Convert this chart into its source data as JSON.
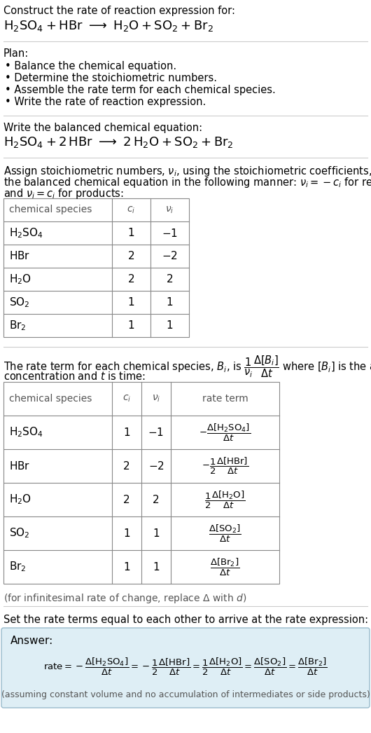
{
  "bg_color": "#ffffff",
  "text_color": "#000000",
  "gray_text": "#555555",
  "table_border": "#888888",
  "answer_bg": "#deeef5",
  "answer_border": "#99bbcc",
  "title_line1": "Construct the rate of reaction expression for:",
  "plan_header": "Plan:",
  "plan_items": [
    "• Balance the chemical equation.",
    "• Determine the stoichiometric numbers.",
    "• Assemble the rate term for each chemical species.",
    "• Write the rate of reaction expression."
  ],
  "balanced_header": "Write the balanced chemical equation:",
  "stoich_intro1": "Assign stoichiometric numbers, $\\nu_i$, using the stoichiometric coefficients, $c_i$, from",
  "stoich_intro2": "the balanced chemical equation in the following manner: $\\nu_i = -c_i$ for reactants",
  "stoich_intro3": "and $\\nu_i = c_i$ for products:",
  "table1_headers": [
    "chemical species",
    "$c_i$",
    "$\\nu_i$"
  ],
  "table1_rows": [
    [
      "$\\mathrm{H_2SO_4}$",
      "1",
      "$-1$"
    ],
    [
      "$\\mathrm{HBr}$",
      "2",
      "$-2$"
    ],
    [
      "$\\mathrm{H_2O}$",
      "2",
      "2"
    ],
    [
      "$\\mathrm{SO_2}$",
      "1",
      "1"
    ],
    [
      "$\\mathrm{Br_2}$",
      "1",
      "1"
    ]
  ],
  "rate_intro2": "concentration and $t$ is time:",
  "table2_headers": [
    "chemical species",
    "$c_i$",
    "$\\nu_i$",
    "rate term"
  ],
  "table2_rows": [
    [
      "$\\mathrm{H_2SO_4}$",
      "1",
      "$-1$",
      "$-\\dfrac{\\Delta[\\mathrm{H_2SO_4}]}{\\Delta t}$"
    ],
    [
      "$\\mathrm{HBr}$",
      "2",
      "$-2$",
      "$-\\dfrac{1}{2}\\dfrac{\\Delta[\\mathrm{HBr}]}{\\Delta t}$"
    ],
    [
      "$\\mathrm{H_2O}$",
      "2",
      "2",
      "$\\dfrac{1}{2}\\dfrac{\\Delta[\\mathrm{H_2O}]}{\\Delta t}$"
    ],
    [
      "$\\mathrm{SO_2}$",
      "1",
      "1",
      "$\\dfrac{\\Delta[\\mathrm{SO_2}]}{\\Delta t}$"
    ],
    [
      "$\\mathrm{Br_2}$",
      "1",
      "1",
      "$\\dfrac{\\Delta[\\mathrm{Br_2}]}{\\Delta t}$"
    ]
  ],
  "infinitesimal_note": "(for infinitesimal rate of change, replace $\\Delta$ with $d$)",
  "set_equal_text": "Set the rate terms equal to each other to arrive at the rate expression:",
  "answer_label": "Answer:",
  "answer_note": "(assuming constant volume and no accumulation of intermediates or side products)"
}
